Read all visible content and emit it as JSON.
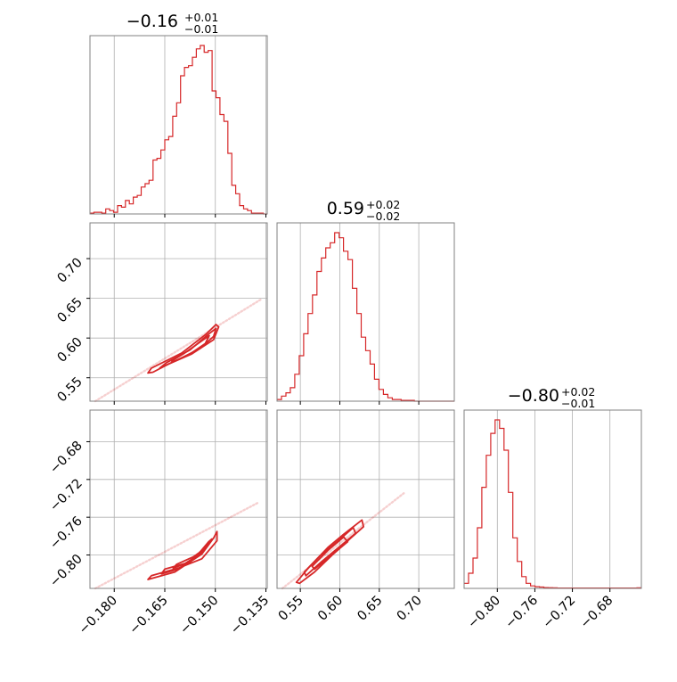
{
  "colors": {
    "series": "#d62728",
    "grid": "#b0b0b0",
    "frame": "#808080"
  },
  "titles": {
    "p0": {
      "value": "−0.16",
      "plus": "+0.01",
      "minus": "−0.01"
    },
    "p1": {
      "value": "0.59",
      "plus": "+0.02",
      "minus": "−0.02"
    },
    "p2": {
      "value": "−0.80",
      "plus": "+0.02",
      "minus": "−0.01"
    }
  },
  "chart_data": {
    "type": "corner",
    "parameters": [
      "p0",
      "p1",
      "p2"
    ],
    "ranges": {
      "p0": [
        -0.1872,
        -0.1346
      ],
      "p1": [
        0.5205,
        0.745
      ],
      "p2": [
        -0.8354,
        -0.6465
      ]
    },
    "ticks": {
      "p0": {
        "values": [
          -0.18,
          -0.165,
          -0.15,
          -0.135
        ],
        "labels": [
          "−0.180",
          "−0.165",
          "−0.150",
          "−0.135"
        ]
      },
      "p1": {
        "values": [
          0.55,
          0.6,
          0.65,
          0.7
        ],
        "labels": [
          "0.55",
          "0.60",
          "0.65",
          "0.70"
        ]
      },
      "p2": {
        "values": [
          -0.8,
          -0.76,
          -0.72,
          -0.68
        ],
        "labels": [
          "−0.80",
          "−0.76",
          "−0.72",
          "−0.68"
        ]
      }
    },
    "grid": true,
    "histograms": {
      "p0": [
        0.005,
        0.01,
        0.01,
        0.005,
        0.03,
        0.02,
        0.01,
        0.05,
        0.04,
        0.08,
        0.06,
        0.1,
        0.11,
        0.16,
        0.18,
        0.2,
        0.32,
        0.33,
        0.38,
        0.44,
        0.46,
        0.58,
        0.66,
        0.82,
        0.87,
        0.88,
        0.93,
        0.98,
        1.0,
        0.96,
        0.97,
        0.73,
        0.69,
        0.59,
        0.55,
        0.36,
        0.17,
        0.12,
        0.05,
        0.03,
        0.02,
        0.005,
        0.005,
        0.005,
        0.0
      ],
      "p1": [
        0.01,
        0.03,
        0.05,
        0.08,
        0.16,
        0.27,
        0.4,
        0.52,
        0.63,
        0.77,
        0.85,
        0.91,
        0.94,
        1.0,
        0.97,
        0.89,
        0.84,
        0.67,
        0.52,
        0.38,
        0.3,
        0.22,
        0.13,
        0.07,
        0.04,
        0.02,
        0.01,
        0.01,
        0.005,
        0.005,
        0.005,
        0.0,
        0.0,
        0.0,
        0.0,
        0.0,
        0.0,
        0.0,
        0.0,
        0.0
      ],
      "p2": [
        0.03,
        0.09,
        0.18,
        0.36,
        0.6,
        0.79,
        0.92,
        1.0,
        0.95,
        0.82,
        0.57,
        0.3,
        0.16,
        0.07,
        0.03,
        0.015,
        0.01,
        0.008,
        0.005,
        0.004,
        0.003,
        0.002,
        0.002,
        0.002,
        0.002,
        0.002,
        0.002,
        0.002,
        0.002,
        0.002,
        0.002,
        0.002,
        0.002,
        0.002,
        0.002,
        0.002,
        0.002,
        0.002,
        0.002,
        0.003
      ]
    },
    "contours": {
      "p1_vs_p0": [
        {
          "x": [
            -0.1685,
            -0.164,
            -0.157,
            -0.1505,
            -0.149,
            -0.1498,
            -0.153,
            -0.16,
            -0.169,
            -0.17
          ],
          "y": [
            0.557,
            0.567,
            0.58,
            0.598,
            0.614,
            0.617,
            0.604,
            0.581,
            0.562,
            0.556
          ]
        },
        {
          "x": [
            -0.1655,
            -0.16,
            -0.1545,
            -0.1505,
            -0.1498,
            -0.152,
            -0.1575,
            -0.1645,
            -0.1665
          ],
          "y": [
            0.564,
            0.575,
            0.587,
            0.602,
            0.612,
            0.605,
            0.585,
            0.569,
            0.562
          ]
        },
        {
          "x": [
            -0.162,
            -0.1575,
            -0.153,
            -0.1518,
            -0.1545,
            -0.1595,
            -0.163
          ],
          "y": [
            0.571,
            0.58,
            0.593,
            0.603,
            0.595,
            0.58,
            0.571
          ]
        }
      ],
      "p2_vs_p0": [
        {
          "x": [
            -0.169,
            -0.161,
            -0.154,
            -0.1495,
            -0.1495,
            -0.1505,
            -0.154,
            -0.162,
            -0.17
          ],
          "y": [
            -0.822,
            -0.814,
            -0.804,
            -0.785,
            -0.775,
            -0.782,
            -0.799,
            -0.818,
            -0.826
          ]
        },
        {
          "x": [
            -0.165,
            -0.159,
            -0.1545,
            -0.151,
            -0.152,
            -0.1555,
            -0.161,
            -0.166
          ],
          "y": [
            -0.815,
            -0.809,
            -0.799,
            -0.783,
            -0.786,
            -0.801,
            -0.815,
            -0.82
          ]
        },
        {
          "x": [
            -0.1615,
            -0.1565,
            -0.153,
            -0.154,
            -0.158,
            -0.1625
          ],
          "y": [
            -0.81,
            -0.802,
            -0.793,
            -0.795,
            -0.808,
            -0.814
          ]
        }
      ],
      "p2_vs_p1": [
        {
          "x": [
            0.547,
            0.562,
            0.585,
            0.605,
            0.628,
            0.63,
            0.614,
            0.593,
            0.568,
            0.549,
            0.545
          ],
          "y": [
            -0.827,
            -0.812,
            -0.792,
            -0.778,
            -0.763,
            -0.77,
            -0.782,
            -0.798,
            -0.818,
            -0.83,
            -0.829
          ]
        },
        {
          "x": [
            0.555,
            0.575,
            0.598,
            0.617,
            0.62,
            0.6,
            0.577,
            0.557
          ],
          "y": [
            -0.818,
            -0.801,
            -0.785,
            -0.771,
            -0.777,
            -0.791,
            -0.807,
            -0.822
          ]
        },
        {
          "x": [
            0.565,
            0.585,
            0.605,
            0.61,
            0.59,
            0.568
          ],
          "y": [
            -0.812,
            -0.795,
            -0.781,
            -0.786,
            -0.8,
            -0.815
          ]
        }
      ]
    }
  }
}
